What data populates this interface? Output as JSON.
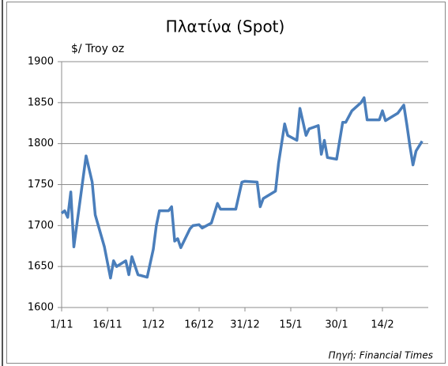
{
  "chart_data": {
    "type": "line",
    "title": "Πλατίνα (Spot)",
    "y_label": "$/ Troy oz",
    "source": "Πηγή: Financial Times",
    "x": [
      0,
      1,
      2,
      3,
      4,
      8,
      10,
      11,
      14,
      16,
      17,
      18,
      21,
      22,
      23,
      25,
      28,
      30,
      31,
      32,
      35,
      36,
      37,
      38,
      39,
      42,
      43,
      45,
      46,
      49,
      51,
      52,
      57,
      59,
      60,
      64,
      65,
      66,
      70,
      71,
      73,
      74,
      77,
      78,
      80,
      81,
      84,
      85,
      86,
      87,
      90,
      92,
      93,
      95,
      98,
      99,
      100,
      104,
      105,
      106,
      110,
      112,
      113,
      114,
      115,
      116,
      118
    ],
    "series": [
      {
        "color": "#4a7ebb",
        "values": [
          1715,
          1718,
          1710,
          1741,
          1674,
          1785,
          1753,
          1713,
          1674,
          1636,
          1657,
          1650,
          1657,
          1640,
          1662,
          1640,
          1637,
          1671,
          1700,
          1718,
          1718,
          1723,
          1681,
          1684,
          1673,
          1696,
          1700,
          1701,
          1697,
          1703,
          1727,
          1720,
          1720,
          1753,
          1754,
          1753,
          1723,
          1733,
          1742,
          1776,
          1824,
          1810,
          1804,
          1843,
          1810,
          1818,
          1822,
          1787,
          1804,
          1783,
          1781,
          1826,
          1826,
          1840,
          1850,
          1856,
          1829,
          1829,
          1840,
          1828,
          1837,
          1847,
          1823,
          1797,
          1774,
          1791,
          1803
        ]
      }
    ],
    "xlim": [
      0,
      120
    ],
    "xticks": [
      {
        "value": 0,
        "label": "1/11"
      },
      {
        "value": 15,
        "label": "16/11"
      },
      {
        "value": 30,
        "label": "1/12"
      },
      {
        "value": 45,
        "label": "16/12"
      },
      {
        "value": 60,
        "label": "31/12"
      },
      {
        "value": 75,
        "label": "15/1"
      },
      {
        "value": 90,
        "label": "30/1"
      },
      {
        "value": 105,
        "label": "14/2"
      }
    ],
    "ylim": [
      1600,
      1900
    ],
    "yticks": [
      1600,
      1650,
      1700,
      1750,
      1800,
      1850,
      1900
    ],
    "grid": true
  }
}
